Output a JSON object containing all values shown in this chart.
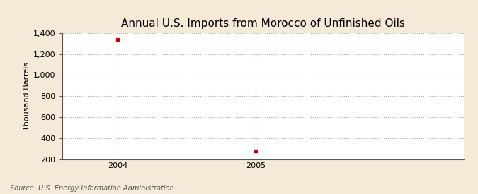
{
  "title": "Annual U.S. Imports from Morocco of Unfinished Oils",
  "ylabel": "Thousand Barrels",
  "source_text": "Source: U.S. Energy Information Administration",
  "background_color": "#f5ead8",
  "plot_background_color": "#ffffff",
  "x_values": [
    2004,
    2005
  ],
  "y_values": [
    1335,
    280
  ],
  "point_color": "#cc0000",
  "point_marker": "s",
  "point_size": 3,
  "ylim": [
    200,
    1400
  ],
  "yticks": [
    200,
    400,
    600,
    800,
    1000,
    1200,
    1400
  ],
  "xlim": [
    2003.6,
    2006.5
  ],
  "xticks": [
    2004,
    2005
  ],
  "grid_color": "#aaaaaa",
  "grid_linestyle": ":",
  "grid_linewidth": 0.8,
  "title_fontsize": 11,
  "ylabel_fontsize": 8,
  "tick_fontsize": 8,
  "source_fontsize": 7
}
